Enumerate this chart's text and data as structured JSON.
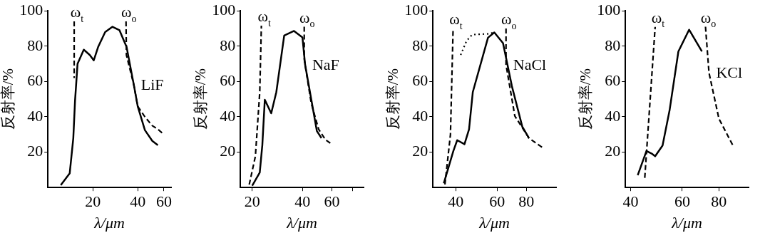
{
  "chart_data": [
    {
      "type": "line",
      "xlabel": "λ/μm",
      "ylabel": "反射率/%",
      "log": "x",
      "xlim": [
        10,
        67
      ],
      "xticks": [
        20,
        40,
        60
      ],
      "ylim": [
        0,
        100
      ],
      "yticks": [
        20,
        40,
        60,
        80,
        100
      ],
      "marker": "none",
      "annotations": [
        {
          "text": "ω$_{t}$",
          "x": 15,
          "y": 94
        },
        {
          "text": "ω$_{o}$",
          "x": 33.4,
          "y": 94
        },
        {
          "text": "LiF",
          "x": 37.7,
          "y": 58
        }
      ],
      "series": [
        {
          "color": "#000000",
          "line_style": "solid",
          "x": [
            12.2,
            14,
            14.8,
            15.2,
            15.8,
            17.4,
            19.1,
            20.3,
            21.7,
            24.2,
            27.1,
            30.2,
            33.7,
            37.7,
            40,
            44.7,
            50.1,
            54.6
          ],
          "values": [
            1.4,
            8,
            28,
            49,
            70,
            78,
            75,
            72,
            79.5,
            88,
            91,
            89,
            79.5,
            58,
            46,
            32.5,
            26.4,
            24
          ]
        },
        {
          "color": "#000000",
          "line_style": "dashed",
          "x": [
            15,
            15
          ],
          "values": [
            94,
            62
          ]
        },
        {
          "color": "#000000",
          "line_style": "dashed",
          "x": [
            33.4,
            33.6,
            37.7,
            40,
            44.7,
            50.1,
            54.6,
            60
          ],
          "values": [
            94,
            75,
            58,
            46,
            40,
            35,
            33,
            30
          ]
        }
      ]
    },
    {
      "type": "line",
      "xlabel": "λ/μm",
      "ylabel": "反射率/%",
      "log": "x",
      "xlim": [
        17,
        93
      ],
      "xticks": [
        20,
        40,
        60,
        {
          "value": 80,
          "label": null
        }
      ],
      "ylim": [
        0,
        100
      ],
      "yticks": [
        20,
        40,
        60,
        80,
        100
      ],
      "marker": "none",
      "annotations": [
        {
          "text": "ω$_{t}$",
          "x": 22.7,
          "y": 91.6
        },
        {
          "text": "ω$_{o}$",
          "x": 41,
          "y": 91
        },
        {
          "text": "NaF",
          "x": 41.5,
          "y": 69.5
        }
      ],
      "series": [
        {
          "color": "#000000",
          "line_style": "solid",
          "x": [
            20,
            22.2,
            23,
            23.8,
            26,
            27.9,
            31.1,
            35.6,
            40,
            41.5,
            48.8,
            52
          ],
          "values": [
            1,
            8.5,
            24,
            49.7,
            42,
            54,
            86,
            88.6,
            85,
            69.5,
            32,
            28
          ]
        },
        {
          "color": "#000000",
          "line_style": "dashed",
          "x": [
            19.2,
            20.9,
            22.2,
            22.7
          ],
          "values": [
            1.7,
            17.7,
            54,
            91.6
          ]
        },
        {
          "color": "#000000",
          "line_style": "dashed",
          "x": [
            41,
            41,
            45.1,
            50,
            55,
            60
          ],
          "values": [
            91,
            72.6,
            48,
            33,
            27,
            24.5
          ]
        }
      ]
    },
    {
      "type": "line",
      "xlabel": "λ/μm",
      "ylabel": "反射率/%",
      "log": "x",
      "xlim": [
        32,
        107
      ],
      "xticks": [
        40,
        60,
        80
      ],
      "ylim": [
        0,
        100
      ],
      "yticks": [
        20,
        40,
        60,
        80,
        100
      ],
      "marker": "none",
      "annotations": [
        {
          "text": "ω$_{t}$",
          "x": 39,
          "y": 90
        },
        {
          "text": "ω$_{o}$",
          "x": 65.5,
          "y": 90
        },
        {
          "text": "NaCl",
          "x": 65.5,
          "y": 69.5
        }
      ],
      "series": [
        {
          "color": "#000000",
          "line_style": "solid",
          "x": [
            35.6,
            39.1,
            40.6,
            43.6,
            45.6,
            47.3,
            54.9,
            58.4,
            63.6,
            69.4,
            76.8,
            82
          ],
          "values": [
            2.4,
            20.7,
            26.8,
            24.5,
            33,
            54,
            84.8,
            87.8,
            81.7,
            57.3,
            34.5,
            28
          ]
        },
        {
          "color": "#000000",
          "line_style": "dashed",
          "x": [
            36,
            38,
            39
          ],
          "values": [
            1.7,
            30,
            90
          ]
        },
        {
          "color": "#000000",
          "line_style": "dashed",
          "x": [
            65.5,
            65.5,
            71.4,
            82,
            95
          ],
          "values": [
            90,
            69.5,
            40.5,
            28,
            22
          ]
        },
        {
          "color": "#000000",
          "line_style": "dotted",
          "x": [
            42,
            44.5,
            47,
            55,
            58.4
          ],
          "values": [
            75,
            83,
            86.5,
            87,
            87.8
          ]
        }
      ]
    },
    {
      "type": "line",
      "xlabel": "λ/μm",
      "ylabel": "反射率/%",
      "log": "x",
      "xlim": [
        38.4,
        101
      ],
      "xticks": [
        40,
        60,
        80
      ],
      "ylim": [
        0,
        100
      ],
      "yticks": [
        20,
        40,
        60,
        80,
        100
      ],
      "marker": "none",
      "annotations": [
        {
          "text": "ω$_{t}$",
          "x": 48.5,
          "y": 90.9
        },
        {
          "text": "ω$_{o}$",
          "x": 72,
          "y": 91
        },
        {
          "text": "KCl",
          "x": 74,
          "y": 65
        }
      ],
      "series": [
        {
          "color": "#000000",
          "line_style": "solid",
          "x": [
            42.3,
            45.3,
            47.2,
            48.5,
            51.4,
            54.3,
            58.2,
            63.3,
            70
          ],
          "values": [
            7,
            20.7,
            19.2,
            17.7,
            23.8,
            43.6,
            77,
            89.3,
            77
          ]
        },
        {
          "color": "#000000",
          "line_style": "dashed",
          "x": [
            44.7,
            48.5
          ],
          "values": [
            5.5,
            90.9
          ]
        },
        {
          "color": "#000000",
          "line_style": "dashed",
          "x": [
            72,
            74,
            80,
            89.3
          ],
          "values": [
            91,
            65,
            39,
            23.8
          ]
        }
      ]
    }
  ]
}
